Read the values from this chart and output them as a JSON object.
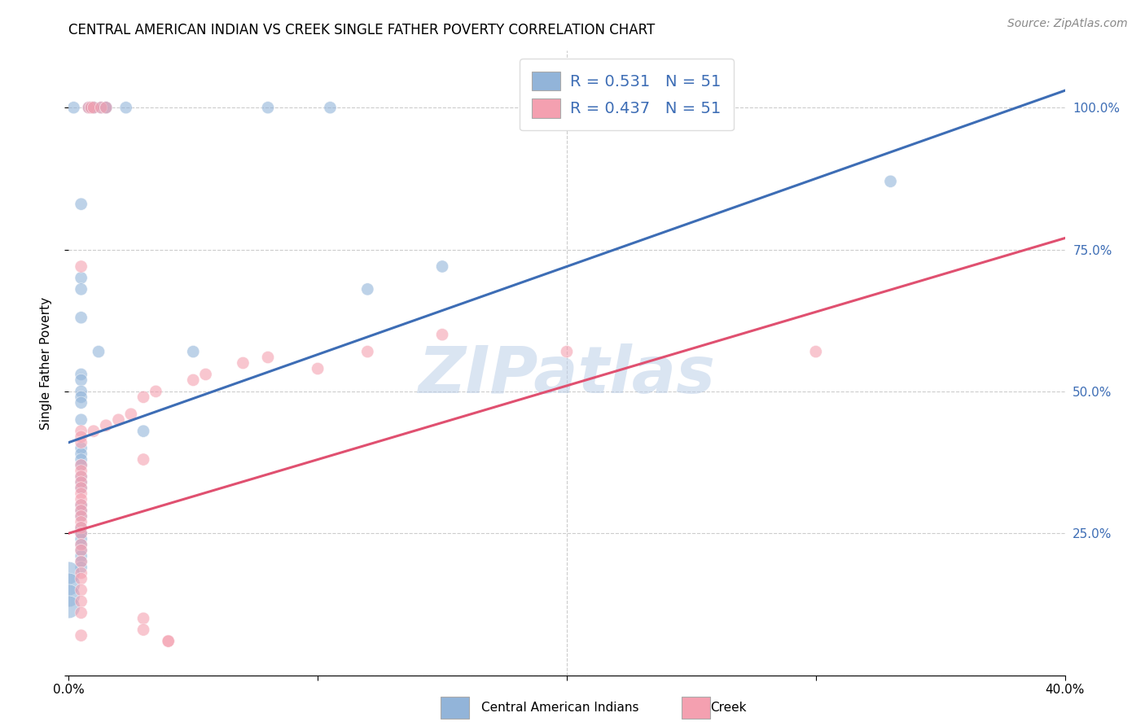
{
  "title": "CENTRAL AMERICAN INDIAN VS CREEK SINGLE FATHER POVERTY CORRELATION CHART",
  "source": "Source: ZipAtlas.com",
  "ylabel": "Single Father Poverty",
  "right_yticks": [
    "25.0%",
    "50.0%",
    "75.0%",
    "100.0%"
  ],
  "right_ytick_vals": [
    0.25,
    0.5,
    0.75,
    1.0
  ],
  "legend_blue_r": "R = 0.531",
  "legend_blue_n": "N = 51",
  "legend_pink_r": "R = 0.437",
  "legend_pink_n": "N = 51",
  "legend_label_blue": "Central American Indians",
  "legend_label_pink": "Creek",
  "watermark": "ZIPatlas",
  "blue_color": "#92B4D9",
  "pink_color": "#F4A0B0",
  "blue_line_color": "#3D6DB5",
  "pink_line_color": "#E05070",
  "blue_scatter": [
    [
      0.002,
      1.0
    ],
    [
      0.008,
      1.0
    ],
    [
      0.009,
      1.0
    ],
    [
      0.009,
      1.0
    ],
    [
      0.01,
      1.0
    ],
    [
      0.01,
      1.0
    ],
    [
      0.013,
      1.0
    ],
    [
      0.015,
      1.0
    ],
    [
      0.015,
      1.0
    ],
    [
      0.023,
      1.0
    ],
    [
      0.08,
      1.0
    ],
    [
      0.105,
      1.0
    ],
    [
      0.005,
      0.83
    ],
    [
      0.33,
      0.87
    ],
    [
      0.005,
      0.7
    ],
    [
      0.005,
      0.68
    ],
    [
      0.15,
      0.72
    ],
    [
      0.005,
      0.63
    ],
    [
      0.12,
      0.68
    ],
    [
      0.012,
      0.57
    ],
    [
      0.05,
      0.57
    ],
    [
      0.005,
      0.53
    ],
    [
      0.005,
      0.52
    ],
    [
      0.005,
      0.5
    ],
    [
      0.005,
      0.49
    ],
    [
      0.005,
      0.48
    ],
    [
      0.005,
      0.45
    ],
    [
      0.03,
      0.43
    ],
    [
      0.005,
      0.4
    ],
    [
      0.005,
      0.39
    ],
    [
      0.005,
      0.38
    ],
    [
      0.005,
      0.37
    ],
    [
      0.005,
      0.35
    ],
    [
      0.005,
      0.34
    ],
    [
      0.005,
      0.33
    ],
    [
      0.005,
      0.3
    ],
    [
      0.005,
      0.29
    ],
    [
      0.005,
      0.28
    ],
    [
      0.005,
      0.26
    ],
    [
      0.005,
      0.25
    ],
    [
      0.005,
      0.25
    ],
    [
      0.005,
      0.24
    ],
    [
      0.005,
      0.23
    ],
    [
      0.005,
      0.22
    ],
    [
      0.005,
      0.21
    ],
    [
      0.005,
      0.2
    ],
    [
      0.005,
      0.19
    ],
    [
      0.0,
      0.18
    ],
    [
      0.0,
      0.16
    ],
    [
      0.0,
      0.14
    ],
    [
      0.0,
      0.12
    ]
  ],
  "pink_scatter": [
    [
      0.008,
      1.0
    ],
    [
      0.009,
      1.0
    ],
    [
      0.01,
      1.0
    ],
    [
      0.013,
      1.0
    ],
    [
      0.015,
      1.0
    ],
    [
      0.005,
      0.72
    ],
    [
      0.3,
      0.57
    ],
    [
      0.2,
      0.57
    ],
    [
      0.15,
      0.6
    ],
    [
      0.12,
      0.57
    ],
    [
      0.1,
      0.54
    ],
    [
      0.08,
      0.56
    ],
    [
      0.07,
      0.55
    ],
    [
      0.055,
      0.53
    ],
    [
      0.05,
      0.52
    ],
    [
      0.035,
      0.5
    ],
    [
      0.03,
      0.49
    ],
    [
      0.025,
      0.46
    ],
    [
      0.02,
      0.45
    ],
    [
      0.015,
      0.44
    ],
    [
      0.01,
      0.43
    ],
    [
      0.005,
      0.43
    ],
    [
      0.005,
      0.42
    ],
    [
      0.005,
      0.41
    ],
    [
      0.03,
      0.38
    ],
    [
      0.005,
      0.37
    ],
    [
      0.005,
      0.36
    ],
    [
      0.005,
      0.35
    ],
    [
      0.005,
      0.34
    ],
    [
      0.005,
      0.33
    ],
    [
      0.005,
      0.32
    ],
    [
      0.005,
      0.31
    ],
    [
      0.005,
      0.3
    ],
    [
      0.005,
      0.29
    ],
    [
      0.005,
      0.28
    ],
    [
      0.005,
      0.27
    ],
    [
      0.005,
      0.26
    ],
    [
      0.005,
      0.25
    ],
    [
      0.005,
      0.23
    ],
    [
      0.005,
      0.22
    ],
    [
      0.005,
      0.2
    ],
    [
      0.005,
      0.18
    ],
    [
      0.005,
      0.17
    ],
    [
      0.005,
      0.15
    ],
    [
      0.005,
      0.13
    ],
    [
      0.005,
      0.11
    ],
    [
      0.03,
      0.1
    ],
    [
      0.03,
      0.08
    ],
    [
      0.005,
      0.07
    ],
    [
      0.04,
      0.06
    ],
    [
      0.04,
      0.06
    ]
  ],
  "xlim": [
    0.0,
    0.4
  ],
  "ylim": [
    0.0,
    1.1
  ],
  "blue_line_x": [
    0.0,
    0.4
  ],
  "blue_line_y": [
    0.41,
    1.03
  ],
  "pink_line_x": [
    0.0,
    0.4
  ],
  "pink_line_y": [
    0.25,
    0.77
  ],
  "grid_ytick_vals": [
    0.0,
    0.25,
    0.5,
    0.75,
    1.0
  ],
  "title_fontsize": 12,
  "axis_label_fontsize": 11,
  "tick_fontsize": 11,
  "source_fontsize": 10,
  "legend_fontsize": 14
}
